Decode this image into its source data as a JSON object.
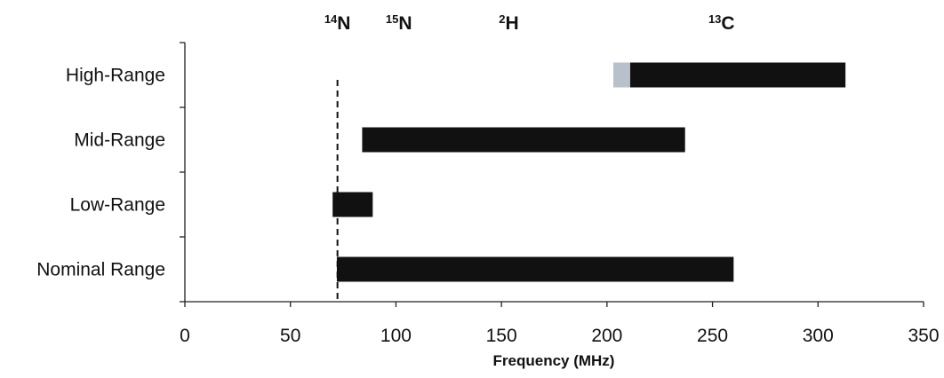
{
  "chart_data": {
    "type": "bar",
    "orientation": "horizontal",
    "bar_mode": "floating-range",
    "categories": [
      "High-Range",
      "Mid-Range",
      "Low-Range",
      "Nominal Range"
    ],
    "ranges": [
      {
        "category": "High-Range",
        "start": 211,
        "end": 313,
        "color": "#111111",
        "extension": {
          "start": 203,
          "end": 211,
          "color": "#b8c0cc"
        }
      },
      {
        "category": "Mid-Range",
        "start": 84,
        "end": 237,
        "color": "#111111"
      },
      {
        "category": "Low-Range",
        "start": 70,
        "end": 89,
        "color": "#111111"
      },
      {
        "category": "Nominal Range",
        "start": 72,
        "end": 260,
        "color": "#111111"
      }
    ],
    "xlabel": "Frequency (MHz)",
    "xlim": [
      0,
      350
    ],
    "x_ticks": [
      0,
      50,
      100,
      150,
      200,
      250,
      300,
      350
    ],
    "grid": false,
    "reference_line": {
      "x": 72.3,
      "style": "dashed",
      "label_ref": "14N"
    },
    "nucleus_labels": [
      {
        "mass": "14",
        "symbol": "N",
        "x": 72.3
      },
      {
        "mass": "15",
        "symbol": "N",
        "x": 101.4
      },
      {
        "mass": "2",
        "symbol": "H",
        "x": 153.5
      },
      {
        "mass": "13",
        "symbol": "C",
        "x": 254.3
      }
    ]
  }
}
